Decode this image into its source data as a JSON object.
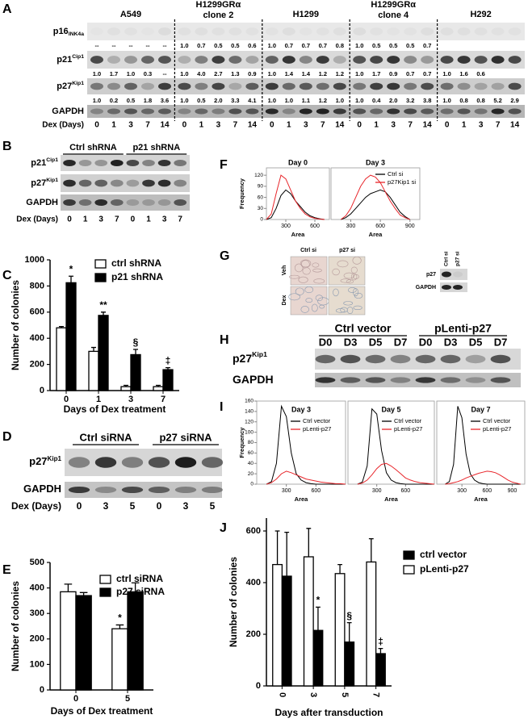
{
  "panel_letters": [
    "A",
    "B",
    "C",
    "D",
    "E",
    "F",
    "G",
    "H",
    "I",
    "J"
  ],
  "blot_A": {
    "groups": [
      {
        "name": "A549"
      },
      {
        "name": "H1299GRα",
        "line2": "clone 2"
      },
      {
        "name": "H1299"
      },
      {
        "name": "H1299GRα",
        "line2": "clone 4"
      },
      {
        "name": "H292"
      }
    ],
    "rows": [
      {
        "label": "p16",
        "sub": "INK4a",
        "ratios": [
          [
            "--",
            "--",
            "--",
            "--",
            "--"
          ],
          [
            "1.0",
            "0.7",
            "0.5",
            "0.5",
            "0.6"
          ],
          [
            "1.0",
            "0.7",
            "0.7",
            "0.7",
            "0.8"
          ],
          [
            "1.0",
            "0.5",
            "0.5",
            "0.5",
            "0.7"
          ],
          [
            null,
            null,
            null,
            null,
            null
          ]
        ]
      },
      {
        "label": "p21",
        "sup": "Cip1",
        "ratios": [
          [
            "1.0",
            "1.7",
            "1.0",
            "0.3",
            "--"
          ],
          [
            "1.0",
            "4.0",
            "2.7",
            "1.3",
            "0.9"
          ],
          [
            "1.0",
            "1.4",
            "1.4",
            "1.2",
            "1.2"
          ],
          [
            "1.0",
            "1.7",
            "0.9",
            "0.7",
            "0.7"
          ],
          [
            "1.0",
            "1.6",
            "0.6",
            null,
            null
          ]
        ]
      },
      {
        "label": "p27",
        "sup": "Kip1",
        "ratios": [
          [
            "1.0",
            "0.2",
            "0.5",
            "1.8",
            "3.6"
          ],
          [
            "1.0",
            "0.5",
            "2.0",
            "3.3",
            "4.1"
          ],
          [
            "1.0",
            "1.0",
            "1.1",
            "1.2",
            "1.0"
          ],
          [
            "1.0",
            "0.4",
            "2.0",
            "3.2",
            "3.8"
          ],
          [
            "1.0",
            "0.8",
            "0.8",
            "5.2",
            "2.9"
          ]
        ]
      },
      {
        "label": "GAPDH"
      }
    ],
    "axis_label": "Dex (Days)",
    "lanes": [
      "0",
      "1",
      "3",
      "7",
      "14"
    ]
  },
  "blot_B": {
    "groups": [
      "Ctrl shRNA",
      "p21 shRNA"
    ],
    "rows": [
      {
        "label": "p21",
        "sup": "Cip1"
      },
      {
        "label": "p27",
        "sup": "Kip1"
      },
      {
        "label": "GAPDH"
      }
    ],
    "axis_label": "Dex (Days)",
    "lanes": [
      "0",
      "1",
      "3",
      "7",
      "0",
      "1",
      "3",
      "7"
    ]
  },
  "blot_D": {
    "groups": [
      "Ctrl siRNA",
      "p27 siRNA"
    ],
    "rows": [
      {
        "label": "p27",
        "sup": "Kip1"
      },
      {
        "label": "GAPDH"
      }
    ],
    "axis_label": "Dex (Days)",
    "lanes": [
      "0",
      "3",
      "5",
      "0",
      "3",
      "5"
    ]
  },
  "panel_G": {
    "columns": [
      "Ctrl si",
      "p27 si"
    ],
    "rows": [
      "Veh",
      "Dex"
    ],
    "blot_lanes": [
      "Ctrl si",
      "p27 si"
    ],
    "blot_rows": [
      "p27",
      "GAPDH"
    ]
  },
  "blot_H": {
    "groups": [
      "Ctrl vector",
      "pLenti-p27"
    ],
    "rows": [
      {
        "label": "p27",
        "sup": "Kip1"
      },
      {
        "label": "GAPDH"
      }
    ],
    "lanes": [
      "D0",
      "D3",
      "D5",
      "D7",
      "D0",
      "D3",
      "D5",
      "D7"
    ]
  },
  "chart_data": [
    {
      "type": "bar",
      "ylabel": "Number of colonies",
      "xlabel": "Days of Dex treatment",
      "categories": [
        "0",
        "1",
        "3",
        "7"
      ],
      "ylim": [
        0,
        1000
      ],
      "yticks": [
        0,
        200,
        400,
        600,
        800,
        1000
      ],
      "series": [
        {
          "name": "ctrl shRNA",
          "color": "#ffffff",
          "values": [
            480,
            300,
            30,
            30
          ],
          "errors": [
            10,
            30,
            10,
            10
          ]
        },
        {
          "name": "p21 shRNA",
          "color": "#000000",
          "values": [
            825,
            575,
            275,
            160
          ],
          "errors": [
            50,
            25,
            40,
            15
          ],
          "annotations": [
            "*",
            "**",
            "§",
            "‡"
          ]
        }
      ]
    },
    {
      "type": "bar",
      "ylabel": "Number of colonies",
      "xlabel": "Days of Dex treatment",
      "categories": [
        "0",
        "5"
      ],
      "ylim": [
        0,
        500
      ],
      "yticks": [
        0,
        100,
        200,
        300,
        400,
        500
      ],
      "series": [
        {
          "name": "ctrl siRNA",
          "color": "#ffffff",
          "values": [
            385,
            240
          ],
          "errors": [
            30,
            15
          ],
          "annotations": [
            null,
            "*"
          ]
        },
        {
          "name": "p27 siRNA",
          "color": "#000000",
          "values": [
            370,
            385
          ],
          "errors": [
            12,
            35
          ]
        }
      ]
    },
    {
      "type": "line",
      "ylabel": "Frequency",
      "xlabel": "Area",
      "ylim": [
        0,
        140
      ],
      "yticks": [
        0,
        30,
        60,
        90,
        120
      ],
      "series": [
        {
          "name": "Ctrl si",
          "color": "#000000"
        },
        {
          "name": "p27Kip1 si",
          "color": "#e8262b"
        }
      ],
      "panels": [
        {
          "title": "Day 0",
          "xlim": [
            100,
            750
          ],
          "xticks": [
            300,
            600
          ],
          "x": [
            100,
            150,
            200,
            250,
            300,
            350,
            400,
            450,
            500,
            550,
            600,
            650,
            700
          ],
          "values": [
            [
              0,
              5,
              30,
              65,
              80,
              70,
              50,
              35,
              20,
              10,
              5,
              2,
              0
            ],
            [
              0,
              15,
              70,
              120,
              110,
              80,
              50,
              30,
              15,
              7,
              3,
              1,
              0
            ]
          ]
        },
        {
          "title": "Day 3",
          "xlim": [
            100,
            1000
          ],
          "xticks": [
            300,
            600,
            900
          ],
          "x": [
            200,
            250,
            300,
            350,
            400,
            450,
            500,
            550,
            600,
            650,
            700,
            750,
            800,
            850,
            900
          ],
          "values": [
            [
              0,
              5,
              15,
              30,
              45,
              60,
              70,
              75,
              80,
              75,
              60,
              40,
              20,
              8,
              0
            ],
            [
              0,
              10,
              30,
              60,
              90,
              110,
              120,
              115,
              100,
              75,
              50,
              30,
              12,
              5,
              0
            ]
          ]
        }
      ]
    },
    {
      "type": "line",
      "ylabel": "Frequency",
      "xlabel": "Area",
      "ylim": [
        0,
        160
      ],
      "yticks": [
        0,
        20,
        40,
        60,
        80,
        100,
        120,
        140,
        160
      ],
      "series": [
        {
          "name": "Ctrl vector",
          "color": "#000000"
        },
        {
          "name": "pLenti-p27",
          "color": "#e8262b"
        }
      ],
      "panels": [
        {
          "title": "Day 3",
          "xlim": [
            0,
            900
          ],
          "xticks": [
            300,
            600
          ],
          "x": [
            100,
            150,
            200,
            250,
            300,
            350,
            400,
            450,
            500,
            550,
            600,
            650,
            700,
            750,
            800,
            850,
            900
          ],
          "values": [
            [
              0,
              5,
              40,
              150,
              130,
              60,
              20,
              8,
              3,
              1,
              0,
              0,
              0,
              0,
              0,
              0,
              0
            ],
            [
              0,
              3,
              10,
              20,
              25,
              22,
              18,
              14,
              10,
              8,
              6,
              4,
              3,
              2,
              1,
              1,
              0
            ]
          ]
        },
        {
          "title": "Day 5",
          "xlim": [
            0,
            900
          ],
          "xticks": [
            300,
            600
          ],
          "x": [
            100,
            150,
            200,
            250,
            300,
            350,
            400,
            450,
            500,
            550,
            600,
            650,
            700,
            750,
            800,
            850,
            900
          ],
          "values": [
            [
              0,
              4,
              35,
              145,
              135,
              65,
              22,
              8,
              3,
              1,
              0,
              0,
              0,
              0,
              0,
              0,
              0
            ],
            [
              0,
              2,
              8,
              18,
              30,
              38,
              40,
              35,
              28,
              20,
              12,
              8,
              5,
              3,
              2,
              1,
              0
            ]
          ]
        },
        {
          "title": "Day 7",
          "xlim": [
            0,
            1050
          ],
          "xticks": [
            300,
            600,
            900
          ],
          "x": [
            100,
            150,
            200,
            250,
            300,
            350,
            400,
            450,
            500,
            550,
            600,
            650,
            700,
            750,
            800,
            850,
            900,
            950,
            1000
          ],
          "values": [
            [
              0,
              5,
              38,
              150,
              128,
              58,
              20,
              8,
              3,
              1,
              0,
              0,
              0,
              0,
              0,
              0,
              0,
              0,
              0
            ],
            [
              0,
              1,
              3,
              5,
              8,
              12,
              15,
              18,
              21,
              23,
              25,
              24,
              22,
              18,
              13,
              8,
              4,
              2,
              0
            ]
          ]
        }
      ]
    },
    {
      "type": "bar",
      "ylabel": "Number of colonies",
      "xlabel": "Days after transduction",
      "categories": [
        "0",
        "3",
        "5",
        "7"
      ],
      "ylim": [
        0,
        650
      ],
      "yticks": [
        0,
        200,
        400,
        600
      ],
      "series": [
        {
          "name": "ctrl vector",
          "color": "#000000",
          "values": [
            425,
            215,
            170,
            125
          ],
          "errors": [
            170,
            90,
            75,
            20
          ],
          "annotations": [
            null,
            "*",
            "§",
            "‡"
          ]
        },
        {
          "name": "pLenti-p27",
          "color": "#ffffff",
          "values": [
            470,
            500,
            435,
            480
          ],
          "errors": [
            130,
            110,
            35,
            90
          ]
        }
      ]
    }
  ]
}
